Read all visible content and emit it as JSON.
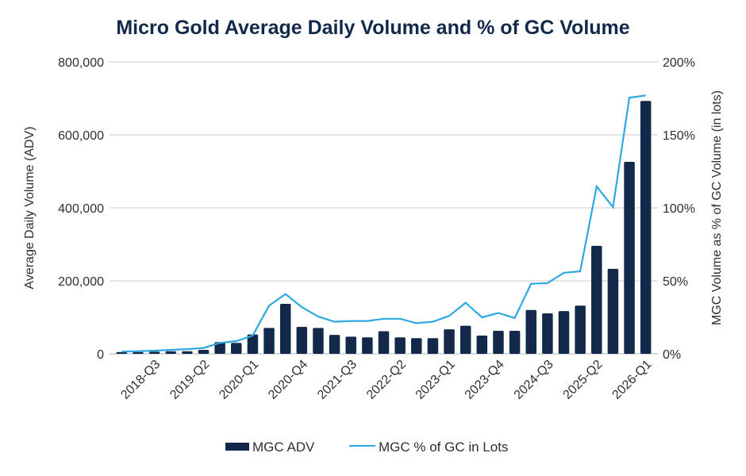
{
  "chart_data": {
    "type": "bar",
    "title": "Micro Gold Average Daily Volume and % of GC Volume",
    "xlabel": "",
    "ylabel": "Average Daily Volume (ADV)",
    "y2label": "MGC Volume as % of GC Volume (in lots)",
    "ylim": [
      0,
      800000
    ],
    "y2lim": [
      0,
      200
    ],
    "yticks": [
      "0",
      "200,000",
      "400,000",
      "600,000",
      "800,000"
    ],
    "yticks_values": [
      0,
      200000,
      400000,
      600000,
      800000
    ],
    "y2ticks": [
      "0%",
      "50%",
      "100%",
      "150%",
      "200%"
    ],
    "y2ticks_values": [
      0,
      50,
      100,
      150,
      200
    ],
    "grid": true,
    "legend_position": "bottom-center",
    "categories": [
      "2018-Q1",
      "2018-Q2",
      "2018-Q3",
      "2018-Q4",
      "2019-Q1",
      "2019-Q2",
      "2019-Q3",
      "2019-Q4",
      "2020-Q1",
      "2020-Q2",
      "2020-Q3",
      "2020-Q4",
      "2021-Q1",
      "2021-Q2",
      "2021-Q3",
      "2021-Q4",
      "2022-Q1",
      "2022-Q2",
      "2022-Q3",
      "2022-Q4",
      "2023-Q1",
      "2023-Q2",
      "2023-Q3",
      "2023-Q4",
      "2024-Q1",
      "2024-Q2",
      "2024-Q3",
      "2024-Q4",
      "2025-Q1",
      "2025-Q2",
      "2025-Q3",
      "2025-Q4",
      "2026-Q1"
    ],
    "xtick_labels_shown": [
      "2018-Q3",
      "2019-Q2",
      "2020-Q1",
      "2020-Q4",
      "2021-Q3",
      "2022-Q2",
      "2023-Q1",
      "2023-Q4",
      "2024-Q3",
      "2025-Q2",
      "2026-Q1"
    ],
    "series": [
      {
        "name": "MGC ADV",
        "type": "bar",
        "axis": "left",
        "color": "#13294b",
        "values": [
          5000,
          5000,
          6000,
          7000,
          7000,
          11000,
          32000,
          30000,
          53000,
          71000,
          137000,
          74000,
          71000,
          52000,
          47000,
          45000,
          62000,
          45000,
          43000,
          43000,
          67000,
          77000,
          50000,
          63000,
          63000,
          120000,
          111000,
          117000,
          132000,
          296000,
          233000,
          526000,
          693000
        ]
      },
      {
        "name": "MGC % of GC in Lots",
        "type": "line",
        "axis": "right",
        "color": "#2ea8e0",
        "values": [
          1.5,
          1.8,
          2.2,
          2.7,
          3.2,
          4.0,
          7.5,
          8.7,
          12.5,
          33,
          41,
          32,
          25.5,
          22,
          22.5,
          22.5,
          24,
          24,
          21,
          22,
          26,
          35,
          25,
          28,
          24.5,
          48,
          48.5,
          55.5,
          56.5,
          114.7,
          100.5,
          175.5,
          177
        ]
      }
    ]
  }
}
